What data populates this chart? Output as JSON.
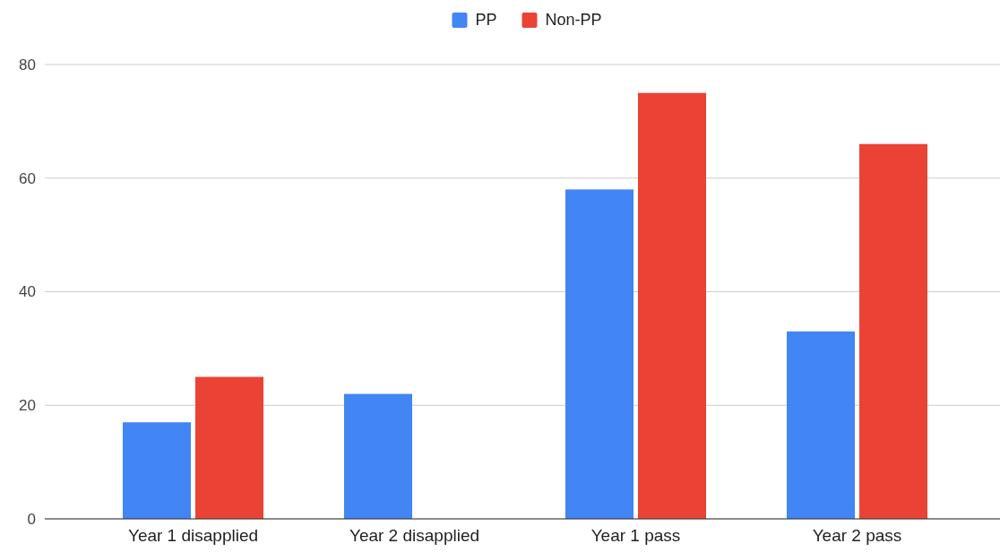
{
  "chart_data": {
    "type": "bar",
    "categories": [
      "Year 1 disapplied",
      "Year 2 disapplied",
      "Year 1 pass",
      "Year 2 pass"
    ],
    "series": [
      {
        "name": "PP",
        "color": "#4285f4",
        "values": [
          17,
          22,
          58,
          33
        ]
      },
      {
        "name": "Non-PP",
        "color": "#ea4335",
        "values": [
          25,
          0,
          75,
          66
        ]
      }
    ],
    "ylim": [
      0,
      80
    ],
    "yticks": [
      0,
      20,
      40,
      60,
      80
    ],
    "grid": "y",
    "legend": "top"
  }
}
